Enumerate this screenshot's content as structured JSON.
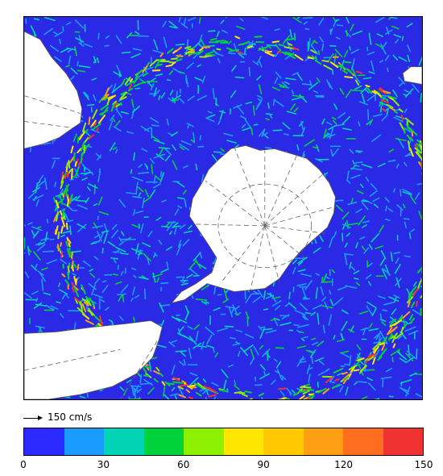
{
  "map": {
    "projection": "south-polar stereographic",
    "background_color": "#2a2ae6",
    "land_color": "#ffffff",
    "grid_style": "dashed-gray"
  },
  "scale": {
    "label": "150 cm/s"
  },
  "colorbar": {
    "colors": [
      "#2a2aff",
      "#1a9cff",
      "#00d4b4",
      "#00d23c",
      "#8cf000",
      "#ffe600",
      "#ffc800",
      "#ffa014",
      "#ff6e1e",
      "#f03232"
    ],
    "tick_labels": [
      "0",
      "30",
      "60",
      "90",
      "120",
      "150"
    ],
    "min": 0,
    "max": 150
  }
}
